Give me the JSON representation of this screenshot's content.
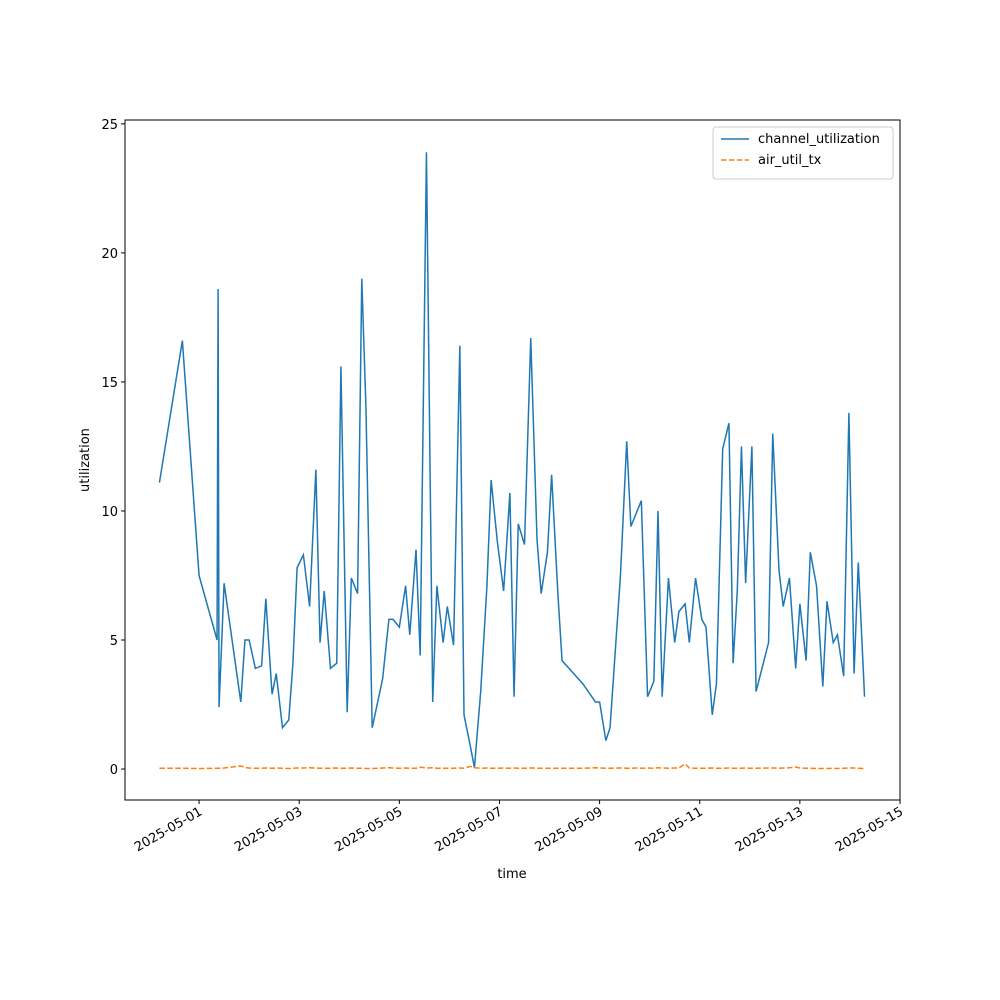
{
  "chart_data": {
    "type": "line",
    "xlabel": "time",
    "ylabel": "utilization",
    "x": [
      "2025-04-30T05:00",
      "2025-04-30T16:00",
      "2025-05-01T00:00",
      "2025-05-01T08:38",
      "2025-05-01T09:07",
      "2025-05-01T09:35",
      "2025-05-01T12:00",
      "2025-05-01T20:00",
      "2025-05-01T22:00",
      "2025-05-02T00:00",
      "2025-05-02T03:00",
      "2025-05-02T06:00",
      "2025-05-02T08:00",
      "2025-05-02T11:00",
      "2025-05-02T13:00",
      "2025-05-02T16:00",
      "2025-05-02T19:00",
      "2025-05-02T21:00",
      "2025-05-02T23:00",
      "2025-05-03T02:00",
      "2025-05-03T05:00",
      "2025-05-03T08:00",
      "2025-05-03T10:00",
      "2025-05-03T12:00",
      "2025-05-03T15:00",
      "2025-05-03T18:00",
      "2025-05-03T20:00",
      "2025-05-03T23:00",
      "2025-05-04T01:00",
      "2025-05-04T04:00",
      "2025-05-04T06:00",
      "2025-05-04T08:00",
      "2025-05-04T11:00",
      "2025-05-04T16:00",
      "2025-05-04T19:00",
      "2025-05-04T21:00",
      "2025-05-05T00:00",
      "2025-05-05T03:00",
      "2025-05-05T05:00",
      "2025-05-05T08:00",
      "2025-05-05T10:00",
      "2025-05-05T13:00",
      "2025-05-05T16:00",
      "2025-05-05T18:00",
      "2025-05-05T21:00",
      "2025-05-05T23:00",
      "2025-05-06T02:00",
      "2025-05-06T05:00",
      "2025-05-06T07:00",
      "2025-05-06T10:00",
      "2025-05-06T12:00",
      "2025-05-06T15:00",
      "2025-05-06T18:00",
      "2025-05-06T20:00",
      "2025-05-06T23:00",
      "2025-05-07T02:00",
      "2025-05-07T05:00",
      "2025-05-07T07:00",
      "2025-05-07T09:00",
      "2025-05-07T12:00",
      "2025-05-07T15:00",
      "2025-05-07T18:00",
      "2025-05-07T20:00",
      "2025-05-07T23:00",
      "2025-05-08T01:00",
      "2025-05-08T04:00",
      "2025-05-08T06:00",
      "2025-05-08T16:00",
      "2025-05-08T22:00",
      "2025-05-09T00:00",
      "2025-05-09T03:00",
      "2025-05-09T05:00",
      "2025-05-09T10:00",
      "2025-05-09T13:00",
      "2025-05-09T15:00",
      "2025-05-09T18:00",
      "2025-05-09T20:00",
      "2025-05-09T23:00",
      "2025-05-10T02:00",
      "2025-05-10T04:00",
      "2025-05-10T06:00",
      "2025-05-10T09:00",
      "2025-05-10T12:00",
      "2025-05-10T14:00",
      "2025-05-10T17:00",
      "2025-05-10T19:00",
      "2025-05-10T22:00",
      "2025-05-11T01:00",
      "2025-05-11T03:00",
      "2025-05-11T06:00",
      "2025-05-11T08:00",
      "2025-05-11T11:00",
      "2025-05-11T14:00",
      "2025-05-11T16:00",
      "2025-05-11T18:00",
      "2025-05-11T20:00",
      "2025-05-11T22:00",
      "2025-05-12T01:00",
      "2025-05-12T03:00",
      "2025-05-12T09:00",
      "2025-05-12T11:00",
      "2025-05-12T14:00",
      "2025-05-12T16:00",
      "2025-05-12T19:00",
      "2025-05-12T22:00",
      "2025-05-13T00:00",
      "2025-05-13T03:00",
      "2025-05-13T05:00",
      "2025-05-13T08:00",
      "2025-05-13T11:00",
      "2025-05-13T13:00",
      "2025-05-13T16:00",
      "2025-05-13T18:00",
      "2025-05-13T21:00",
      "2025-05-13T23:30",
      "2025-05-14T02:00",
      "2025-05-14T04:00",
      "2025-05-14T07:00"
    ],
    "series": [
      {
        "name": "channel_utilization",
        "color": "#1f77b4",
        "dash": "solid",
        "values": [
          11.1,
          16.6,
          7.5,
          5.0,
          18.6,
          2.4,
          7.2,
          2.6,
          5.0,
          5.0,
          3.9,
          4.0,
          6.6,
          2.9,
          3.7,
          1.6,
          1.9,
          4.1,
          7.8,
          8.3,
          6.3,
          11.6,
          4.9,
          6.9,
          3.9,
          4.1,
          15.6,
          2.2,
          7.4,
          6.8,
          19.0,
          14.0,
          1.6,
          3.5,
          5.8,
          5.8,
          5.5,
          7.1,
          5.2,
          8.5,
          4.4,
          23.9,
          2.6,
          7.1,
          4.9,
          6.3,
          4.8,
          16.4,
          2.1,
          0.9,
          0.05,
          3.0,
          7.1,
          11.2,
          8.8,
          6.9,
          10.7,
          2.8,
          9.5,
          8.7,
          16.7,
          8.9,
          6.8,
          8.4,
          11.4,
          6.8,
          4.2,
          3.3,
          2.6,
          2.6,
          1.1,
          1.6,
          7.5,
          12.7,
          9.4,
          10.0,
          10.4,
          2.8,
          3.4,
          10.0,
          2.8,
          7.4,
          4.9,
          6.1,
          6.4,
          4.9,
          7.4,
          5.8,
          5.5,
          2.1,
          3.3,
          12.4,
          13.4,
          4.1,
          6.9,
          12.5,
          7.2,
          12.5,
          3.0,
          4.9,
          13.0,
          7.7,
          6.3,
          7.4,
          3.9,
          6.4,
          4.2,
          8.4,
          7.1,
          3.2,
          6.5,
          4.9,
          5.2,
          3.6,
          13.8,
          3.7,
          8.0,
          2.8
        ]
      },
      {
        "name": "air_util_tx",
        "color": "#ff7f0e",
        "dash": "dashed",
        "values": [
          0.03,
          0.03,
          0.02,
          0.03,
          0.03,
          0.03,
          0.04,
          0.12,
          0.06,
          0.04,
          0.03,
          0.03,
          0.04,
          0.03,
          0.04,
          0.03,
          0.02,
          0.03,
          0.04,
          0.04,
          0.05,
          0.04,
          0.03,
          0.03,
          0.03,
          0.04,
          0.03,
          0.03,
          0.04,
          0.03,
          0.03,
          0.02,
          0.02,
          0.04,
          0.05,
          0.04,
          0.03,
          0.04,
          0.03,
          0.03,
          0.07,
          0.04,
          0.05,
          0.03,
          0.03,
          0.03,
          0.03,
          0.04,
          0.03,
          0.1,
          0.05,
          0.03,
          0.04,
          0.03,
          0.03,
          0.04,
          0.03,
          0.04,
          0.03,
          0.03,
          0.04,
          0.03,
          0.03,
          0.03,
          0.03,
          0.03,
          0.03,
          0.03,
          0.05,
          0.04,
          0.03,
          0.03,
          0.04,
          0.03,
          0.03,
          0.04,
          0.03,
          0.04,
          0.03,
          0.05,
          0.04,
          0.03,
          0.04,
          0.04,
          0.2,
          0.04,
          0.03,
          0.03,
          0.03,
          0.04,
          0.03,
          0.03,
          0.04,
          0.03,
          0.03,
          0.03,
          0.04,
          0.03,
          0.03,
          0.04,
          0.04,
          0.03,
          0.04,
          0.05,
          0.08,
          0.04,
          0.03,
          0.03,
          0.02,
          0.02,
          0.02,
          0.03,
          0.02,
          0.03,
          0.04,
          0.04,
          0.03,
          0.02
        ]
      }
    ],
    "xlim": [
      "2025-04-29T12:30",
      "2025-05-15T00:00"
    ],
    "xticks": [
      "2025-05-01",
      "2025-05-03",
      "2025-05-05",
      "2025-05-07",
      "2025-05-09",
      "2025-05-11",
      "2025-05-13",
      "2025-05-15"
    ],
    "ylim": [
      -1.2,
      25.15
    ],
    "yticks": [
      0,
      5,
      10,
      15,
      20,
      25
    ],
    "grid": false,
    "legend": "upper right"
  }
}
